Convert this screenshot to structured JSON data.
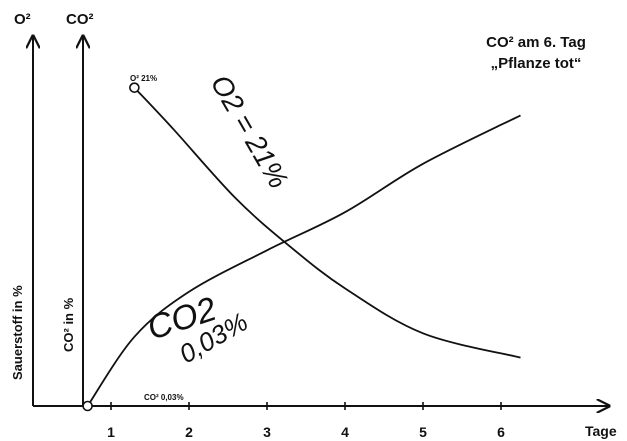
{
  "chart_data": {
    "type": "line",
    "title_line1": "CO² am 6. Tag",
    "title_line2": "„Pflanze tot“",
    "xlabel": "Tage",
    "x_ticks": [
      "1",
      "2",
      "3",
      "4",
      "5",
      "6"
    ],
    "x_range": [
      0,
      6.6
    ],
    "y_range": [
      0,
      100
    ],
    "y_axes": [
      {
        "top_label": "O²",
        "side_label": "Sauerstoff in %"
      },
      {
        "top_label": "CO²",
        "side_label": "CO² in %"
      }
    ],
    "series": [
      {
        "name": "O2",
        "start_label": "O² 21%",
        "handwritten_label": "O2 = 21%",
        "x": [
          1.3,
          1.8,
          2.6,
          3.3,
          4.0,
          5.0,
          6.25
        ],
        "y": [
          92,
          80,
          60,
          46,
          34,
          21,
          14
        ]
      },
      {
        "name": "CO2",
        "start_label": "CO² 0,03%",
        "handwritten_label": "CO2",
        "handwritten_value": "0,03%",
        "x": [
          0.7,
          1.3,
          2.0,
          3.0,
          4.0,
          5.0,
          6.25
        ],
        "y": [
          0,
          20,
          33,
          45,
          56,
          70,
          84
        ]
      }
    ],
    "grid": false,
    "legend": "none"
  }
}
